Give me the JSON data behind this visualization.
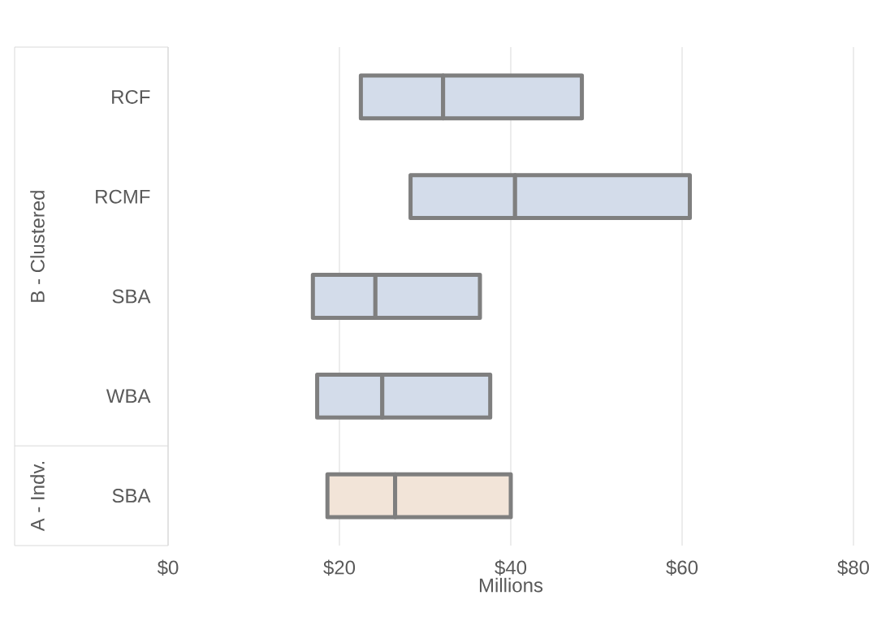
{
  "chart_data": {
    "type": "bar",
    "orientation": "horizontal",
    "xlabel": "Millions",
    "categories": [
      "RCF",
      "RCMF",
      "SBA",
      "WBA",
      "SBA"
    ],
    "series": [
      {
        "base": [
          22.5,
          28.3,
          16.9,
          17.4,
          18.6
        ],
        "values": [
          9.6,
          12.2,
          7.3,
          7.6,
          7.9
        ],
        "colors": [
          "#d3dcea",
          "#d3dcea",
          "#d3dcea",
          "#d3dcea",
          "#f2e4d8"
        ]
      },
      {
        "base": [
          32.1,
          40.5,
          24.2,
          25.0,
          26.5
        ],
        "values": [
          16.2,
          20.4,
          12.2,
          12.6,
          13.5
        ],
        "colors": [
          "#d3dcea",
          "#d3dcea",
          "#d3dcea",
          "#d3dcea",
          "#f2e4d8"
        ]
      }
    ],
    "xlim": [
      0,
      80
    ],
    "xticks": [
      {
        "value": 0,
        "label": "$0"
      },
      {
        "value": 20,
        "label": "$20"
      },
      {
        "value": 40,
        "label": "$40"
      },
      {
        "value": 60,
        "label": "$60"
      },
      {
        "value": 80,
        "label": "$80"
      }
    ],
    "grid": "x",
    "annotations": [
      "B - Clustered",
      "A - Indv."
    ]
  }
}
